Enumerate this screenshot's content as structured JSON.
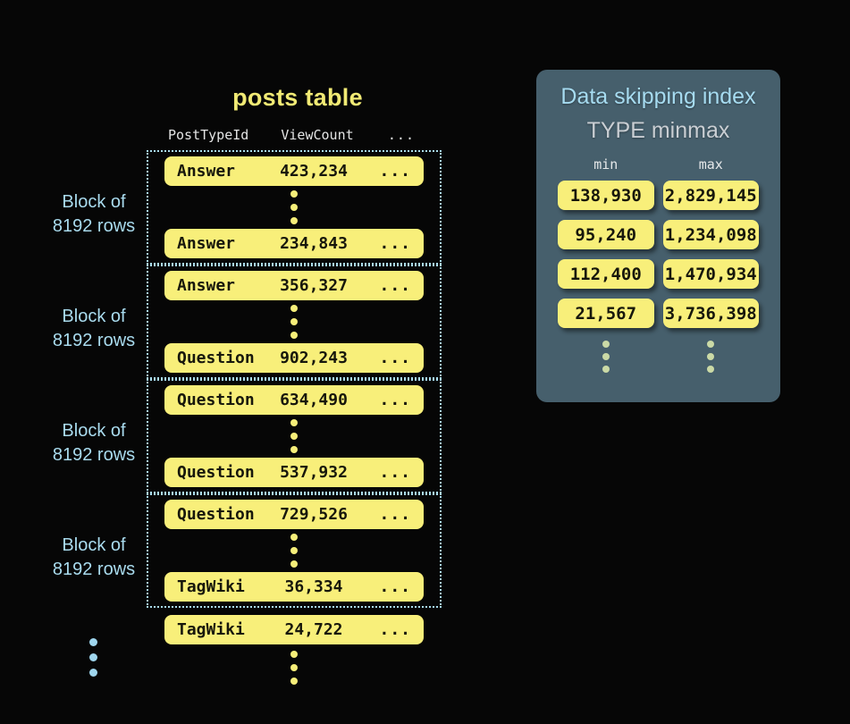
{
  "posts_table": {
    "title": "posts table",
    "columns": {
      "type": "PostTypeId",
      "count": "ViewCount",
      "more": "..."
    },
    "block_label_line1": "Block of",
    "block_label_line2": "8192 rows",
    "blocks": [
      {
        "rows": [
          {
            "type": "Answer",
            "count": "423,234",
            "more": "..."
          },
          {
            "type": "Answer",
            "count": "234,843",
            "more": "..."
          }
        ]
      },
      {
        "rows": [
          {
            "type": "Answer",
            "count": "356,327",
            "more": "..."
          },
          {
            "type": "Question",
            "count": "902,243",
            "more": "..."
          }
        ]
      },
      {
        "rows": [
          {
            "type": "Question",
            "count": "634,490",
            "more": "..."
          },
          {
            "type": "Question",
            "count": "537,932",
            "more": "..."
          }
        ]
      },
      {
        "rows": [
          {
            "type": "Question",
            "count": "729,526",
            "more": "..."
          },
          {
            "type": "TagWiki",
            "count": "36,334",
            "more": "..."
          }
        ]
      }
    ],
    "trailing_row": {
      "type": "TagWiki",
      "count": "24,722",
      "more": "..."
    }
  },
  "index_panel": {
    "title": "Data skipping index",
    "subtitle": "TYPE minmax",
    "min_label": "min",
    "max_label": "max",
    "entries": [
      {
        "min": "138,930",
        "max": "2,829,145"
      },
      {
        "min": "95,240",
        "max": "1,234,098"
      },
      {
        "min": "112,400",
        "max": "1,470,934"
      },
      {
        "min": "21,567",
        "max": "3,736,398"
      }
    ]
  },
  "colors": {
    "background": "#060606",
    "chip_yellow": "#f8ef7a",
    "chip_text": "#17170c",
    "accent_blue": "#a9dbee",
    "dotted_border_blue": "#aadced",
    "panel_background": "#465f6c",
    "panel_subtitle_gray": "#c9ced3",
    "panel_dots_sage": "#cbdaa6",
    "title_yellow": "#f1ea74"
  },
  "icons": {
    "ellipsis_vertical": "vertical-ellipsis-dots"
  }
}
